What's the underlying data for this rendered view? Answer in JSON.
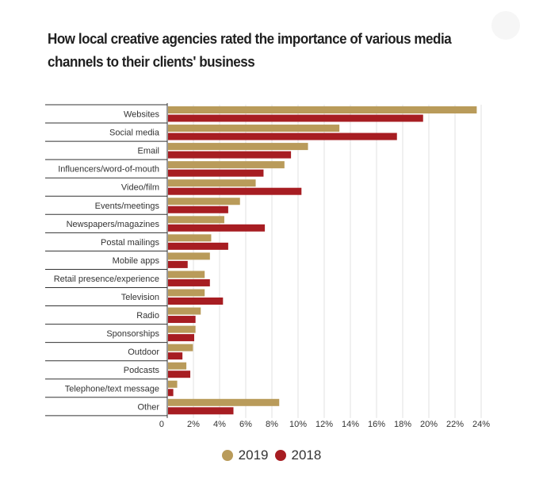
{
  "title": "How local creative agencies rated the importance of various media channels to their clients' business",
  "colors": {
    "y2019": "#b99b5a",
    "y2018": "#a71d22"
  },
  "chart_data": {
    "type": "bar",
    "orientation": "horizontal",
    "title": "How local creative agencies rated the importance of various media channels to their clients' business",
    "xlabel": "",
    "ylabel": "",
    "xlim": [
      0,
      24
    ],
    "x_ticks": [
      "0",
      "2%",
      "4%",
      "6%",
      "8%",
      "10%",
      "12%",
      "14%",
      "16%",
      "18%",
      "20%",
      "22%",
      "24%"
    ],
    "grid": true,
    "legend_position": "bottom-center",
    "categories": [
      "Websites",
      "Social media",
      "Email",
      "Influencers/word-of-mouth",
      "Video/film",
      "Events/meetings",
      "Newspapers/magazines",
      "Postal mailings",
      "Mobile apps",
      "Retail presence/experience",
      "Television",
      "Radio",
      "Sponsorships",
      "Outdoor",
      "Podcasts",
      "Telephone/text message",
      "Other"
    ],
    "series": [
      {
        "name": "2019",
        "values": [
          23.6,
          13.1,
          10.7,
          8.9,
          6.7,
          5.5,
          4.3,
          3.3,
          3.2,
          2.8,
          2.8,
          2.5,
          2.1,
          1.9,
          1.4,
          0.7,
          8.5
        ]
      },
      {
        "name": "2018",
        "values": [
          19.5,
          17.5,
          9.4,
          7.3,
          10.2,
          4.6,
          7.4,
          4.6,
          1.5,
          3.2,
          4.2,
          2.1,
          2.0,
          1.1,
          1.7,
          0.4,
          5.0
        ]
      }
    ]
  },
  "legend": {
    "item_2019": "2019",
    "item_2018": "2018"
  }
}
